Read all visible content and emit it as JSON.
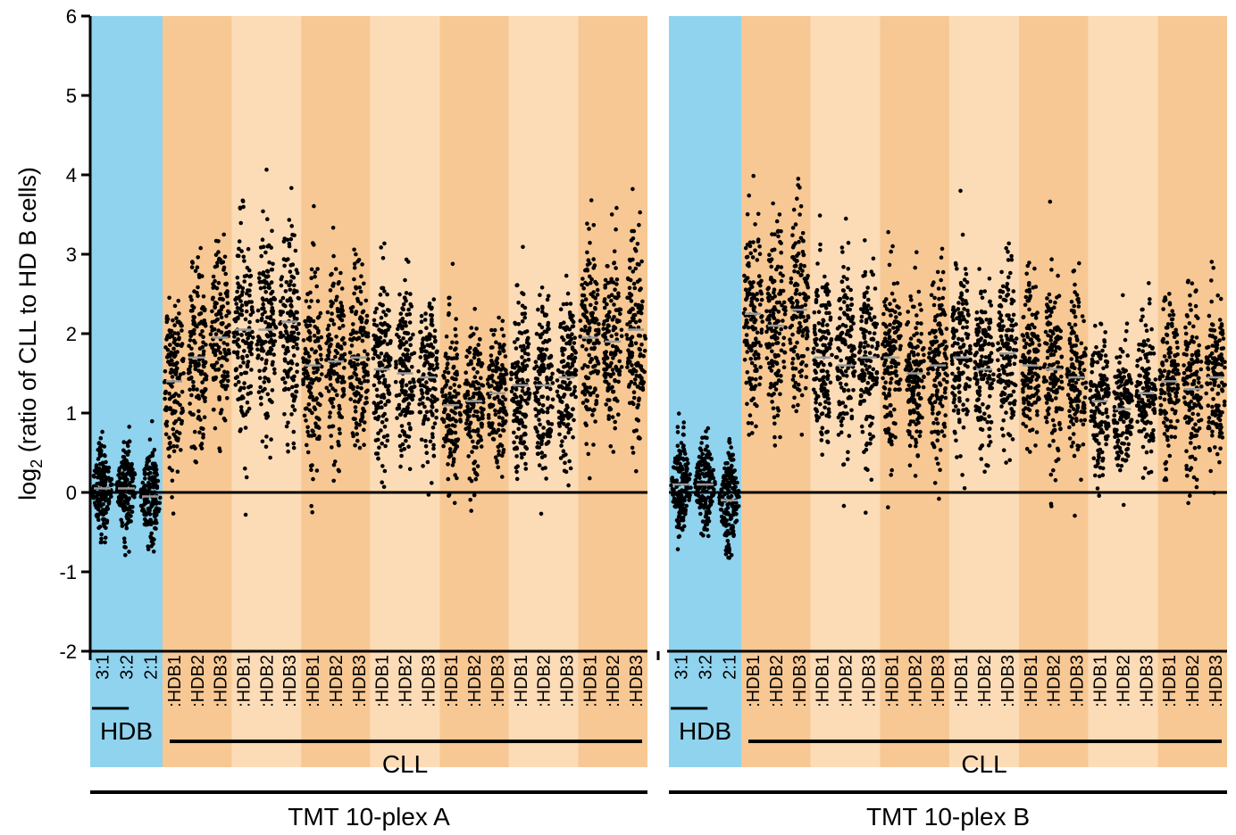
{
  "chart_data": {
    "type": "scatter",
    "ylabel_prefix": "log",
    "ylabel_subscript": "2",
    "ylabel_rest": " (ratio of  CLL to HD B cells)",
    "ylim": [
      -2,
      6
    ],
    "yticks": [
      "-2",
      "-1",
      "0",
      "1",
      "2",
      "3",
      "4",
      "5",
      "6"
    ],
    "reference_line_y": 0,
    "colors": {
      "hdb_bg": "#8fd3ee",
      "cll_dark_bg": "#f7c893",
      "cll_light_bg": "#fbdcb7",
      "points": "#000000",
      "median": "#9a9a9a"
    },
    "panels": [
      {
        "name": "TMT 10-plex A",
        "hdb_label": "HDB",
        "cll_label": "CLL",
        "hdb_columns": [
          {
            "label": "3:1",
            "median": 0.05,
            "spread": 0.28
          },
          {
            "label": "3:2",
            "median": 0.05,
            "spread": 0.28
          },
          {
            "label": "2:1",
            "median": -0.05,
            "spread": 0.3
          }
        ],
        "cll_columns": [
          {
            "label": ":HDB1",
            "median": 1.4,
            "spread": 0.95
          },
          {
            "label": ":HDB2",
            "median": 1.7,
            "spread": 0.95
          },
          {
            "label": ":HDB3",
            "median": 1.95,
            "spread": 0.95
          },
          {
            "label": ":HDB1",
            "median": 2.05,
            "spread": 1.0
          },
          {
            "label": ":HDB2",
            "median": 2.05,
            "spread": 1.0
          },
          {
            "label": ":HDB3",
            "median": 2.15,
            "spread": 1.0
          },
          {
            "label": ":HDB1",
            "median": 1.6,
            "spread": 0.95
          },
          {
            "label": ":HDB2",
            "median": 1.65,
            "spread": 0.95
          },
          {
            "label": ":HDB3",
            "median": 1.7,
            "spread": 0.95
          },
          {
            "label": ":HDB1",
            "median": 1.55,
            "spread": 0.9
          },
          {
            "label": ":HDB2",
            "median": 1.5,
            "spread": 0.9
          },
          {
            "label": ":HDB3",
            "median": 1.45,
            "spread": 0.9
          },
          {
            "label": ":HDB1",
            "median": 1.1,
            "spread": 0.75
          },
          {
            "label": ":HDB2",
            "median": 1.15,
            "spread": 0.75
          },
          {
            "label": ":HDB3",
            "median": 1.25,
            "spread": 0.75
          },
          {
            "label": ":HDB1",
            "median": 1.35,
            "spread": 0.85
          },
          {
            "label": ":HDB2",
            "median": 1.35,
            "spread": 0.85
          },
          {
            "label": ":HDB3",
            "median": 1.45,
            "spread": 0.85
          },
          {
            "label": ":HDB1",
            "median": 1.95,
            "spread": 1.0
          },
          {
            "label": ":HDB2",
            "median": 1.9,
            "spread": 1.0
          },
          {
            "label": ":HDB3",
            "median": 2.05,
            "spread": 1.05
          }
        ]
      },
      {
        "name": "TMT 10-plex B",
        "hdb_label": "HDB",
        "cll_label": "CLL",
        "hdb_columns": [
          {
            "label": "3:1",
            "median": 0.1,
            "spread": 0.28
          },
          {
            "label": "3:2",
            "median": 0.1,
            "spread": 0.3
          },
          {
            "label": "2:1",
            "median": -0.1,
            "spread": 0.3
          }
        ],
        "cll_columns": [
          {
            "label": ":HDB1",
            "median": 2.25,
            "spread": 1.05
          },
          {
            "label": ":HDB2",
            "median": 2.1,
            "spread": 1.05
          },
          {
            "label": ":HDB3",
            "median": 2.3,
            "spread": 1.05
          },
          {
            "label": ":HDB1",
            "median": 1.7,
            "spread": 0.95
          },
          {
            "label": ":HDB2",
            "median": 1.6,
            "spread": 0.95
          },
          {
            "label": ":HDB3",
            "median": 1.7,
            "spread": 0.95
          },
          {
            "label": ":HDB1",
            "median": 1.7,
            "spread": 0.9
          },
          {
            "label": ":HDB2",
            "median": 1.5,
            "spread": 0.9
          },
          {
            "label": ":HDB3",
            "median": 1.6,
            "spread": 0.9
          },
          {
            "label": ":HDB1",
            "median": 1.7,
            "spread": 0.95
          },
          {
            "label": ":HDB2",
            "median": 1.55,
            "spread": 0.9
          },
          {
            "label": ":HDB3",
            "median": 1.75,
            "spread": 0.9
          },
          {
            "label": ":HDB1",
            "median": 1.6,
            "spread": 0.9
          },
          {
            "label": ":HDB2",
            "median": 1.55,
            "spread": 0.9
          },
          {
            "label": ":HDB3",
            "median": 1.45,
            "spread": 0.9
          },
          {
            "label": ":HDB1",
            "median": 1.15,
            "spread": 0.75
          },
          {
            "label": ":HDB2",
            "median": 1.05,
            "spread": 0.7
          },
          {
            "label": ":HDB3",
            "median": 1.25,
            "spread": 0.75
          },
          {
            "label": ":HDB1",
            "median": 1.4,
            "spread": 0.85
          },
          {
            "label": ":HDB2",
            "median": 1.3,
            "spread": 0.85
          },
          {
            "label": ":HDB3",
            "median": 1.45,
            "spread": 0.85
          }
        ]
      }
    ]
  }
}
